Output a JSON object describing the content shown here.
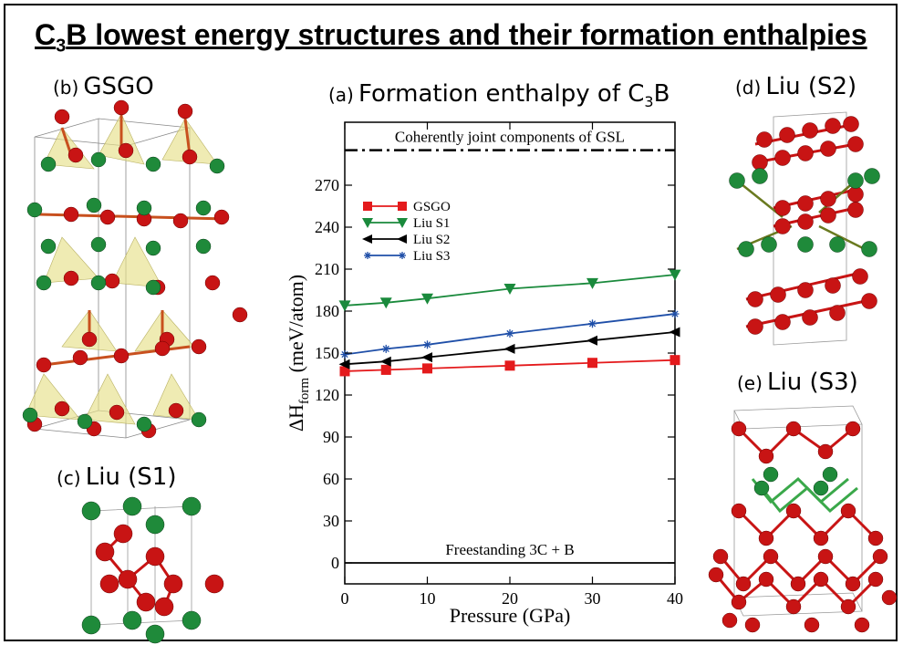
{
  "page": {
    "title_prefix": "C",
    "title_sub": "3",
    "title_rest": "B lowest energy structures and their formation enthalpies"
  },
  "panels": {
    "b": {
      "letter": "(b)",
      "name": "GSGO"
    },
    "c": {
      "letter": "(c)",
      "name": "Liu (S1)"
    },
    "d": {
      "letter": "(d)",
      "name": "Liu (S2)"
    },
    "e": {
      "letter": "(e)",
      "name": "Liu (S3)"
    }
  },
  "colors": {
    "boron_atom": "#c81414",
    "carbon_atom": "#1f8a3a",
    "tetrahedron": "#e6e08a"
  },
  "chart_data": {
    "type": "line",
    "panel_letter": "(a)",
    "title_prefix": "Formation enthalpy of C",
    "title_sub": "3",
    "title_suffix": "B",
    "xlabel": "Pressure (GPa)",
    "ylabel_prefix": "ΔH",
    "ylabel_sub": "form",
    "ylabel_suffix": " (meV/atom)",
    "xlim": [
      0,
      40
    ],
    "ylim": [
      -15,
      315
    ],
    "xticks": [
      0,
      10,
      20,
      30,
      40
    ],
    "yticks": [
      0,
      30,
      60,
      90,
      120,
      150,
      180,
      210,
      240,
      270
    ],
    "grid": false,
    "legend_position": "upper-left",
    "series": [
      {
        "name": "GSGO",
        "color": "#e41a1c",
        "marker": "square",
        "x": [
          0,
          5,
          10,
          20,
          30,
          40
        ],
        "y": [
          137,
          138,
          139,
          141,
          143,
          145
        ]
      },
      {
        "name": "Liu S1",
        "color": "#1a8a3c",
        "marker": "triangle-down",
        "x": [
          0,
          5,
          10,
          20,
          30,
          40
        ],
        "y": [
          184,
          186,
          189,
          196,
          200,
          206
        ]
      },
      {
        "name": "Liu S2",
        "color": "#000000",
        "marker": "triangle-left",
        "x": [
          0,
          5,
          10,
          20,
          30,
          40
        ],
        "y": [
          142,
          144,
          147,
          153,
          159,
          165
        ]
      },
      {
        "name": "Liu S3",
        "color": "#1f4fa8",
        "marker": "star",
        "x": [
          0,
          5,
          10,
          20,
          30,
          40
        ],
        "y": [
          149,
          153,
          156,
          164,
          171,
          178
        ]
      }
    ],
    "reference_lines": [
      {
        "label": "Coherently joint components of GSL",
        "y": 295,
        "style": "dash-dot"
      },
      {
        "label": "Freestanding 3C + B",
        "y": 0,
        "style": "solid"
      }
    ]
  }
}
